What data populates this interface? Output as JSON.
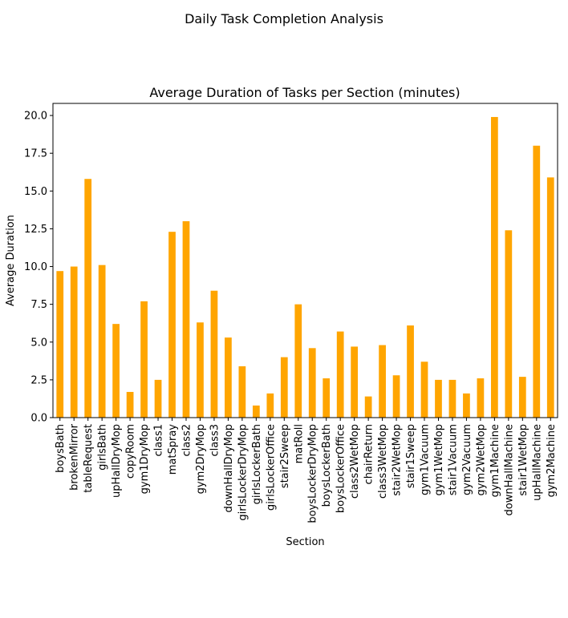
{
  "figure": {
    "suptitle": "Daily Task Completion Analysis"
  },
  "colors": {
    "bar": "#FFA500",
    "axis": "#000000",
    "background": "#ffffff"
  },
  "chart_data": {
    "type": "bar",
    "title": "Average Duration of Tasks per Section (minutes)",
    "xlabel": "Section",
    "ylabel": "Average Duration",
    "ylim": [
      0,
      20.8
    ],
    "yticks": [
      0.0,
      2.5,
      5.0,
      7.5,
      10.0,
      12.5,
      15.0,
      17.5,
      20.0
    ],
    "ytick_labels": [
      "0.0",
      "2.5",
      "5.0",
      "7.5",
      "10.0",
      "12.5",
      "15.0",
      "17.5",
      "20.0"
    ],
    "grid": false,
    "legend": "none",
    "categories": [
      "boysBath",
      "brokenMirror",
      "tableRequest",
      "girlsBath",
      "upHallDryMop",
      "copyRoom",
      "gym1DryMop",
      "class1",
      "matSpray",
      "class2",
      "gym2DryMop",
      "class3",
      "downHallDryMop",
      "girlsLockerDryMop",
      "girlsLockerBath",
      "girlsLockerOffice",
      "stair2Sweep",
      "matRoll",
      "boysLockerDryMop",
      "boysLockerBath",
      "boysLockerOffice",
      "class2WetMop",
      "chairReturn",
      "class3WetMop",
      "stair2WetMop",
      "stair1Sweep",
      "gym1Vacuum",
      "gym1WetMop",
      "stair1Vacuum",
      "gym2Vacuum",
      "gym2WetMop",
      "gym1Machine",
      "downHallMachine",
      "stair1WetMop",
      "upHallMachine",
      "gym2Machine"
    ],
    "values": [
      9.7,
      10.0,
      15.8,
      10.1,
      6.2,
      1.7,
      7.7,
      2.5,
      12.3,
      13.0,
      6.3,
      8.4,
      5.3,
      3.4,
      0.8,
      1.6,
      4.0,
      7.5,
      4.6,
      2.6,
      5.7,
      4.7,
      1.4,
      4.8,
      2.8,
      6.1,
      3.7,
      2.5,
      2.5,
      1.6,
      2.6,
      19.9,
      12.4,
      2.7,
      18.0,
      15.9
    ]
  }
}
